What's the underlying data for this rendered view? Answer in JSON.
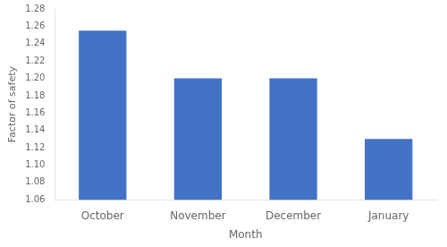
{
  "chart_data": {
    "type": "bar",
    "xlabel": "Month",
    "ylabel": "Factor of safety",
    "categories": [
      "October",
      "November",
      "December",
      "January"
    ],
    "values": [
      1.255,
      1.2,
      1.2,
      1.13
    ],
    "color": "#4472C4",
    "ylim": [
      1.06,
      1.28
    ],
    "yticks": [
      1.06,
      1.08,
      {
        "value": 1.1,
        "label": "1.10"
      },
      1.12,
      1.14,
      1.16,
      1.18,
      {
        "value": 1.2,
        "label": "1.20"
      },
      1.22,
      1.24,
      1.26,
      1.28
    ],
    "grid": false
  }
}
